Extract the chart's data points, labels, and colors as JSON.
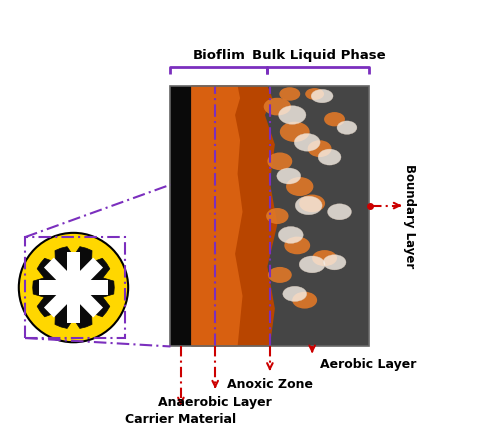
{
  "fig_width": 5.0,
  "fig_height": 4.29,
  "dpi": 100,
  "bg_color": "#ffffff",
  "label_biofilm": "Bioflim",
  "label_bulk": "Bulk Liquid Phase",
  "label_boundary": "Boundary Layer",
  "label_aerobic": "Aerobic Layer",
  "label_anoxic": "Anoxic Zone",
  "label_anaerobic": "Anaerobic Layer",
  "label_carrier": "Carrier Material",
  "purple": "#7B2FBE",
  "red_dash": "#CC0000",
  "yellow": "#FFD700",
  "black": "#000000"
}
